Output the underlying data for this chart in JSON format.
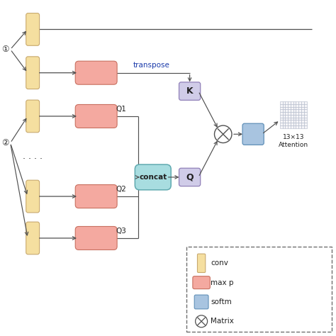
{
  "bg_color": "#ffffff",
  "conv_color": "#f5dfa0",
  "conv_border": "#c8a96e",
  "maxpool_color": "#f4a9a0",
  "maxpool_border": "#c87060",
  "softmax_color": "#a8c4e0",
  "softmax_border": "#6090b8",
  "concat_color": "#a8dde0",
  "concat_border": "#60aab0",
  "K_Q_color": "#d0cce8",
  "K_Q_border": "#9080b8",
  "transpose_label": "transpose",
  "K_label": "K",
  "Q_label": "Q",
  "Q1_label": "Q1",
  "Q2_label": "Q2",
  "Q3_label": "Q3",
  "concat_label": "concat",
  "dots_label": ". . . .",
  "attn_label": "13×13\nAttention",
  "circle1_label": "①",
  "circle2_label": "②",
  "grid_color": "#b0b8c8",
  "line_color": "#505050",
  "arrow_color": "#505050",
  "text_transpose_color": "#1a3aaa",
  "text_color": "#202020"
}
